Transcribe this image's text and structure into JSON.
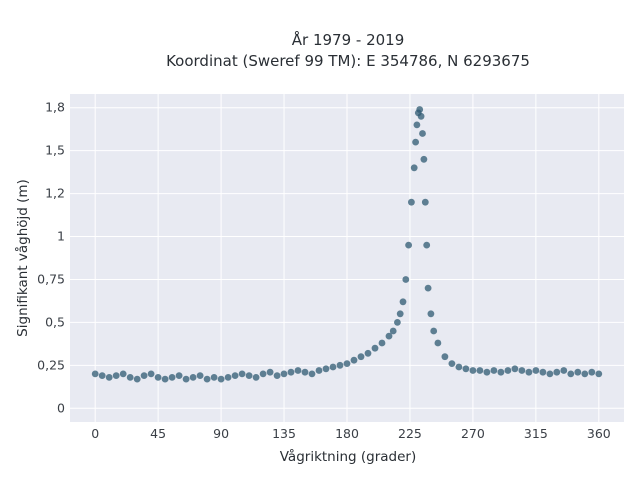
{
  "chart_data": {
    "type": "scatter",
    "title_line1": "År 1979 - 2019",
    "title_line2": "Koordinat (Sweref 99 TM): E 354786, N 6293675",
    "xlabel": "Vågriktning (grader)",
    "ylabel": "Signifikant våghöjd (m)",
    "xlim": [
      -18,
      378
    ],
    "ylim": [
      -0.08,
      1.83
    ],
    "x_ticks": [
      0,
      45,
      90,
      135,
      180,
      225,
      270,
      315,
      360
    ],
    "x_tick_labels": [
      "0",
      "45",
      "90",
      "135",
      "180",
      "225",
      "270",
      "315",
      "360"
    ],
    "y_ticks": [
      0,
      0.25,
      0.5,
      0.75,
      1,
      1.25,
      1.5,
      1.75
    ],
    "y_tick_labels": [
      "0",
      "0,25",
      "0,5",
      "0,75",
      "1",
      "1,2",
      "1,5",
      "1,8"
    ],
    "grid": true,
    "marker_color": "#2f5a72",
    "plot_background": "#e8eaf2",
    "series": [
      {
        "x": [
          0,
          5,
          10,
          15,
          20,
          25,
          30,
          35,
          40,
          45,
          50,
          55,
          60,
          65,
          70,
          75,
          80,
          85,
          90,
          95,
          100,
          105,
          110,
          115,
          120,
          125,
          130,
          135,
          140,
          145,
          150,
          155,
          160,
          165,
          170,
          175,
          180,
          185,
          190,
          195,
          200,
          205,
          210,
          213,
          216,
          218,
          220,
          222,
          224,
          226,
          228,
          229,
          230,
          231,
          232,
          233,
          234,
          235,
          236,
          237,
          238,
          240,
          242,
          245,
          250,
          255,
          260,
          265,
          270,
          275,
          280,
          285,
          290,
          295,
          300,
          305,
          310,
          315,
          320,
          325,
          330,
          335,
          340,
          345,
          350,
          355,
          360
        ],
        "y": [
          0.2,
          0.19,
          0.18,
          0.19,
          0.2,
          0.18,
          0.17,
          0.19,
          0.2,
          0.18,
          0.17,
          0.18,
          0.19,
          0.17,
          0.18,
          0.19,
          0.17,
          0.18,
          0.17,
          0.18,
          0.19,
          0.2,
          0.19,
          0.18,
          0.2,
          0.21,
          0.19,
          0.2,
          0.21,
          0.22,
          0.21,
          0.2,
          0.22,
          0.23,
          0.24,
          0.25,
          0.26,
          0.28,
          0.3,
          0.32,
          0.35,
          0.38,
          0.42,
          0.45,
          0.5,
          0.55,
          0.62,
          0.75,
          0.95,
          1.2,
          1.4,
          1.55,
          1.65,
          1.72,
          1.74,
          1.7,
          1.6,
          1.45,
          1.2,
          0.95,
          0.7,
          0.55,
          0.45,
          0.38,
          0.3,
          0.26,
          0.24,
          0.23,
          0.22,
          0.22,
          0.21,
          0.22,
          0.21,
          0.22,
          0.23,
          0.22,
          0.21,
          0.22,
          0.21,
          0.2,
          0.21,
          0.22,
          0.2,
          0.21,
          0.2,
          0.21,
          0.2
        ]
      }
    ]
  }
}
